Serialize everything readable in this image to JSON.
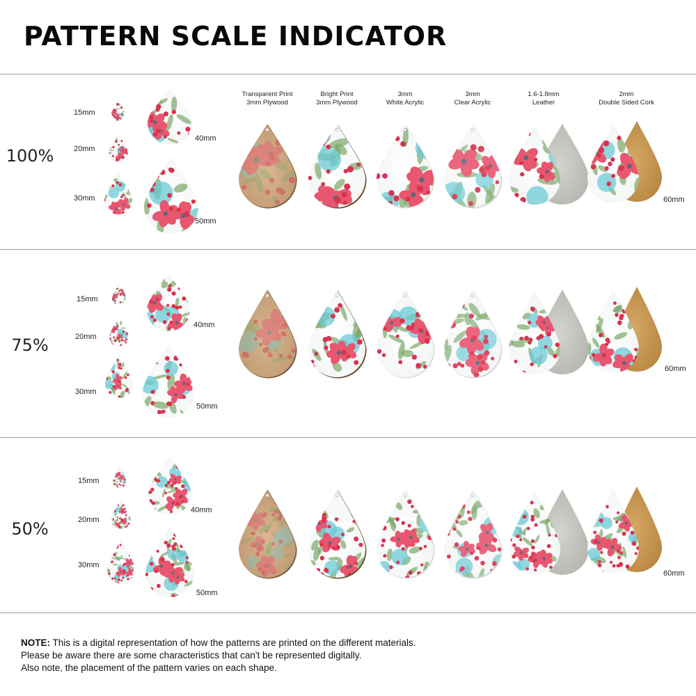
{
  "title": "PATTERN SCALE INDICATOR",
  "materials": [
    {
      "line1": "Transparent Print",
      "line2": "3mm Plywood"
    },
    {
      "line1": "Bright Print",
      "line2": "3mm Plywood"
    },
    {
      "line1": "3mm",
      "line2": "White Acrylic"
    },
    {
      "line1": "3mm",
      "line2": "Clear Acrylic"
    },
    {
      "line1": "1.6-1.8mm",
      "line2": "Leather"
    },
    {
      "line1": "2mm",
      "line2": "Double Sided Cork"
    }
  ],
  "sizes": {
    "s15": "15mm",
    "s20": "20mm",
    "s30": "30mm",
    "s40": "40mm",
    "s50": "50mm",
    "s60": "60mm"
  },
  "scales": [
    "100%",
    "75%",
    "50%"
  ],
  "colors": {
    "rule": "#9a9a9a",
    "pink": "#e8566f",
    "teal": "#6cc9d6",
    "leaf": "#7aa86a",
    "plywood": "#c9a47c",
    "leather": "#c8c8c4",
    "cork": "#c79a55"
  },
  "note": {
    "label": "NOTE:",
    "line1": " This is a digital representation of how the patterns are printed on the different materials.",
    "line2": "Please be aware there are some characteristics that can't be represented digitally.",
    "line3": "Also note, the placement of the pattern varies on each shape."
  }
}
